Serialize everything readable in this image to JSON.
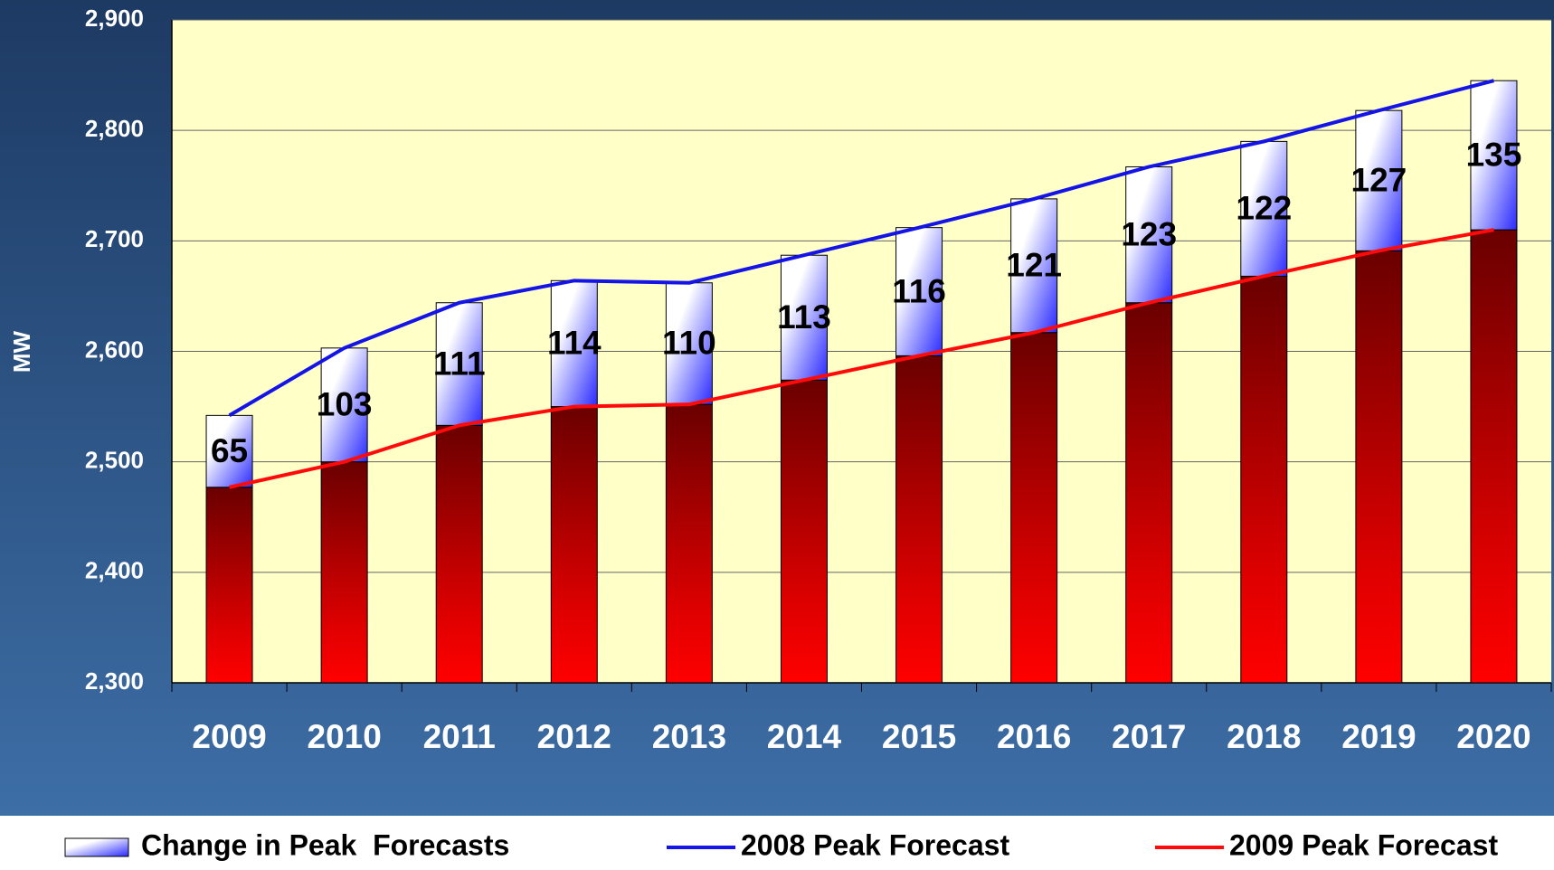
{
  "chart_data": {
    "type": "bar",
    "y_label": "MW",
    "categories": [
      "2009",
      "2010",
      "2011",
      "2012",
      "2013",
      "2014",
      "2015",
      "2016",
      "2017",
      "2018",
      "2019",
      "2020"
    ],
    "series": [
      {
        "name": "Change in Peak  Forecasts",
        "type": "bar",
        "color": "#3a3aff",
        "values": [
          65,
          103,
          111,
          114,
          110,
          113,
          116,
          121,
          123,
          122,
          127,
          135
        ]
      },
      {
        "name": "2008 Peak Forecast",
        "type": "line",
        "color": "#1414e6",
        "values": [
          2542,
          2603,
          2644,
          2664,
          2662,
          2687,
          2712,
          2738,
          2767,
          2790,
          2818,
          2845
        ]
      },
      {
        "name": "2009 Peak Forecast",
        "type": "line",
        "color": "#ff0a0a",
        "values": [
          2477,
          2500,
          2533,
          2550,
          2552,
          2574,
          2596,
          2617,
          2644,
          2668,
          2691,
          2710
        ]
      }
    ],
    "ylim": [
      2300,
      2900
    ],
    "yticks": [
      {
        "value": 2300,
        "label": "2,300"
      },
      {
        "value": 2400,
        "label": "2,400"
      },
      {
        "value": 2500,
        "label": "2,500"
      },
      {
        "value": 2600,
        "label": "2,600"
      },
      {
        "value": 2700,
        "label": "2,700"
      },
      {
        "value": 2800,
        "label": "2,800"
      },
      {
        "value": 2900,
        "label": "2,900"
      }
    ],
    "grid": true
  }
}
